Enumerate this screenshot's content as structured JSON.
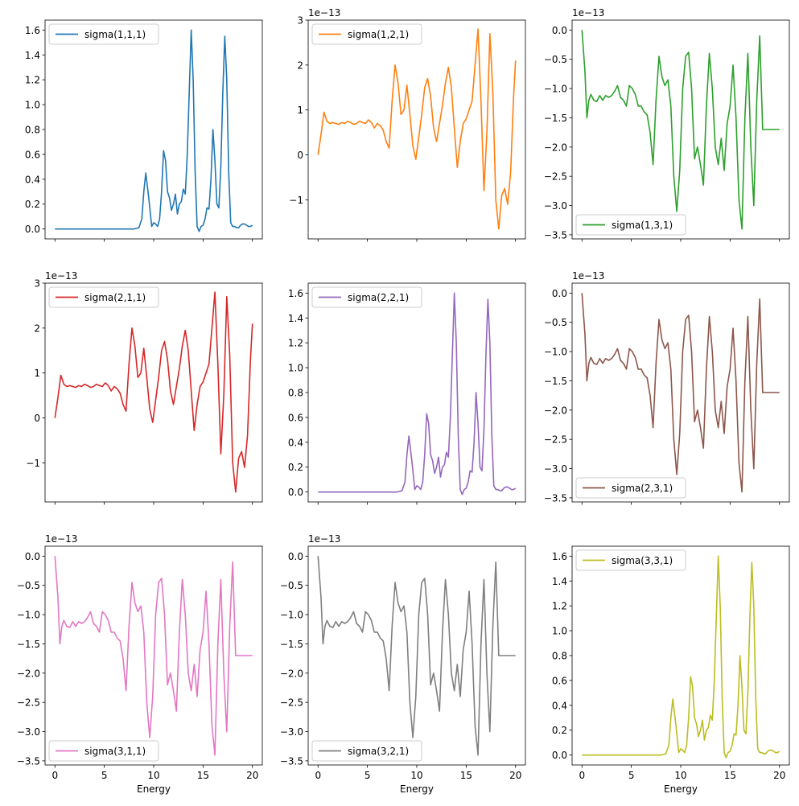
{
  "figure": {
    "xlabel": "Energy",
    "offset_text": "1e−13"
  },
  "colors": [
    "#1f77b4",
    "#ff7f0e",
    "#2ca02c",
    "#d62728",
    "#9467bd",
    "#8c564b",
    "#e377c2",
    "#7f7f7f",
    "#bcbd22"
  ],
  "chart_data": [
    {
      "type": "line",
      "name": "sigma(1,1,1)",
      "series": [
        {
          "name": "sigma(1,1,1)"
        }
      ],
      "scale": 1,
      "shape": "A",
      "sign": 1,
      "ylim": [
        -0.08,
        1.68
      ],
      "yticks": [
        0,
        0.2,
        0.4,
        0.6,
        0.8,
        1.0,
        1.2,
        1.4,
        1.6
      ],
      "ytick_labels": [
        "0.0",
        "0.2",
        "0.4",
        "0.6",
        "0.8",
        "1.0",
        "1.2",
        "1.4",
        "1.6"
      ],
      "xlim": [
        -1,
        21
      ],
      "xticks": [
        0,
        5,
        10,
        15,
        20
      ],
      "xtick_labels": [
        "0",
        "5",
        "10",
        "15",
        "20"
      ],
      "show_xticklabels": false,
      "xlabel": "",
      "offset": false,
      "legend": "upper left",
      "color": "#1f77b4"
    },
    {
      "type": "line",
      "name": "sigma(1,2,1)",
      "series": [
        {
          "name": "sigma(1,2,1)"
        }
      ],
      "scale": 1,
      "shape": "B",
      "sign": 1,
      "ylim": [
        -1.87,
        3.0
      ],
      "yticks": [
        -1,
        0,
        1,
        2,
        3
      ],
      "ytick_labels": [
        "−1",
        "0",
        "1",
        "2",
        "3"
      ],
      "xlim": [
        -1,
        21
      ],
      "xticks": [
        0,
        5,
        10,
        15,
        20
      ],
      "xtick_labels": [
        "0",
        "5",
        "10",
        "15",
        "20"
      ],
      "show_xticklabels": false,
      "xlabel": "",
      "offset": true,
      "legend": "upper left",
      "color": "#ff7f0e"
    },
    {
      "type": "line",
      "name": "sigma(1,3,1)",
      "series": [
        {
          "name": "sigma(1,3,1)"
        }
      ],
      "scale": 1,
      "shape": "C",
      "sign": 1,
      "ylim": [
        -3.57,
        0.17
      ],
      "yticks": [
        -3.5,
        -3.0,
        -2.5,
        -2.0,
        -1.5,
        -1.0,
        -0.5,
        0.0
      ],
      "ytick_labels": [
        "−3.5",
        "−3.0",
        "−2.5",
        "−2.0",
        "−1.5",
        "−1.0",
        "−0.5",
        "0.0"
      ],
      "xlim": [
        -1,
        21
      ],
      "xticks": [
        0,
        5,
        10,
        15,
        20
      ],
      "xtick_labels": [
        "0",
        "5",
        "10",
        "15",
        "20"
      ],
      "show_xticklabels": false,
      "xlabel": "",
      "offset": true,
      "legend": "lower left",
      "color": "#2ca02c"
    },
    {
      "type": "line",
      "name": "sigma(2,1,1)",
      "series": [
        {
          "name": "sigma(2,1,1)"
        }
      ],
      "scale": 1,
      "shape": "B",
      "sign": 1,
      "ylim": [
        -1.87,
        3.0
      ],
      "yticks": [
        -1,
        0,
        1,
        2,
        3
      ],
      "ytick_labels": [
        "−1",
        "0",
        "1",
        "2",
        "3"
      ],
      "xlim": [
        -1,
        21
      ],
      "xticks": [
        0,
        5,
        10,
        15,
        20
      ],
      "xtick_labels": [
        "0",
        "5",
        "10",
        "15",
        "20"
      ],
      "show_xticklabels": false,
      "xlabel": "",
      "offset": true,
      "legend": "upper left",
      "color": "#d62728"
    },
    {
      "type": "line",
      "name": "sigma(2,2,1)",
      "series": [
        {
          "name": "sigma(2,2,1)"
        }
      ],
      "scale": 1,
      "shape": "A",
      "sign": 1,
      "ylim": [
        -0.08,
        1.68
      ],
      "yticks": [
        0,
        0.2,
        0.4,
        0.6,
        0.8,
        1.0,
        1.2,
        1.4,
        1.6
      ],
      "ytick_labels": [
        "0.0",
        "0.2",
        "0.4",
        "0.6",
        "0.8",
        "1.0",
        "1.2",
        "1.4",
        "1.6"
      ],
      "xlim": [
        -1,
        21
      ],
      "xticks": [
        0,
        5,
        10,
        15,
        20
      ],
      "xtick_labels": [
        "0",
        "5",
        "10",
        "15",
        "20"
      ],
      "show_xticklabels": false,
      "xlabel": "",
      "offset": false,
      "legend": "upper left",
      "color": "#9467bd"
    },
    {
      "type": "line",
      "name": "sigma(2,3,1)",
      "series": [
        {
          "name": "sigma(2,3,1)"
        }
      ],
      "scale": 1,
      "shape": "C",
      "sign": 1,
      "ylim": [
        -3.57,
        0.17
      ],
      "yticks": [
        -3.5,
        -3.0,
        -2.5,
        -2.0,
        -1.5,
        -1.0,
        -0.5,
        0.0
      ],
      "ytick_labels": [
        "−3.5",
        "−3.0",
        "−2.5",
        "−2.0",
        "−1.5",
        "−1.0",
        "−0.5",
        "0.0"
      ],
      "xlim": [
        -1,
        21
      ],
      "xticks": [
        0,
        5,
        10,
        15,
        20
      ],
      "xtick_labels": [
        "0",
        "5",
        "10",
        "15",
        "20"
      ],
      "show_xticklabels": false,
      "xlabel": "",
      "offset": true,
      "legend": "lower left",
      "color": "#8c564b"
    },
    {
      "type": "line",
      "name": "sigma(3,1,1)",
      "series": [
        {
          "name": "sigma(3,1,1)"
        }
      ],
      "scale": 1,
      "shape": "C",
      "sign": 1,
      "ylim": [
        -3.57,
        0.17
      ],
      "yticks": [
        -3.5,
        -3.0,
        -2.5,
        -2.0,
        -1.5,
        -1.0,
        -0.5,
        0.0
      ],
      "ytick_labels": [
        "−3.5",
        "−3.0",
        "−2.5",
        "−2.0",
        "−1.5",
        "−1.0",
        "−0.5",
        "0.0"
      ],
      "xlim": [
        -1,
        21
      ],
      "xticks": [
        0,
        5,
        10,
        15,
        20
      ],
      "xtick_labels": [
        "0",
        "5",
        "10",
        "15",
        "20"
      ],
      "show_xticklabels": true,
      "xlabel": "Energy",
      "offset": true,
      "legend": "lower left",
      "color": "#e377c2"
    },
    {
      "type": "line",
      "name": "sigma(3,2,1)",
      "series": [
        {
          "name": "sigma(3,2,1)"
        }
      ],
      "scale": 1,
      "shape": "C",
      "sign": 1,
      "ylim": [
        -3.57,
        0.17
      ],
      "yticks": [
        -3.5,
        -3.0,
        -2.5,
        -2.0,
        -1.5,
        -1.0,
        -0.5,
        0.0
      ],
      "ytick_labels": [
        "−3.5",
        "−3.0",
        "−2.5",
        "−2.0",
        "−1.5",
        "−1.0",
        "−0.5",
        "0.0"
      ],
      "xlim": [
        -1,
        21
      ],
      "xticks": [
        0,
        5,
        10,
        15,
        20
      ],
      "xtick_labels": [
        "0",
        "5",
        "10",
        "15",
        "20"
      ],
      "show_xticklabels": true,
      "xlabel": "Energy",
      "offset": true,
      "legend": "lower left",
      "color": "#7f7f7f"
    },
    {
      "type": "line",
      "name": "sigma(3,3,1)",
      "series": [
        {
          "name": "sigma(3,3,1)"
        }
      ],
      "scale": 1,
      "shape": "A",
      "sign": 1,
      "ylim": [
        -0.08,
        1.68
      ],
      "yticks": [
        0,
        0.2,
        0.4,
        0.6,
        0.8,
        1.0,
        1.2,
        1.4,
        1.6
      ],
      "ytick_labels": [
        "0.0",
        "0.2",
        "0.4",
        "0.6",
        "0.8",
        "1.0",
        "1.2",
        "1.4",
        "1.6"
      ],
      "xlim": [
        -1,
        21
      ],
      "xticks": [
        0,
        5,
        10,
        15,
        20
      ],
      "xtick_labels": [
        "0",
        "5",
        "10",
        "15",
        "20"
      ],
      "show_xticklabels": true,
      "xlabel": "Energy",
      "offset": false,
      "legend": "upper left",
      "color": "#bcbd22"
    }
  ],
  "curves": {
    "A": {
      "x": [
        0,
        7,
        8,
        8.5,
        8.8,
        9.0,
        9.2,
        9.5,
        9.8,
        10.0,
        10.2,
        10.4,
        10.6,
        10.8,
        11.0,
        11.2,
        11.4,
        11.6,
        11.8,
        12.0,
        12.2,
        12.4,
        12.6,
        12.8,
        13.0,
        13.2,
        13.4,
        13.6,
        13.8,
        14.0,
        14.2,
        14.4,
        14.6,
        14.8,
        15.0,
        15.2,
        15.4,
        15.6,
        15.8,
        16.0,
        16.2,
        16.4,
        16.6,
        16.8,
        17.0,
        17.2,
        17.4,
        17.6,
        17.8,
        18.0,
        18.2,
        18.4,
        18.6,
        18.8,
        19.0,
        19.2,
        19.4,
        19.6,
        19.8,
        20.0
      ],
      "y": [
        0,
        0,
        0,
        0.01,
        0.08,
        0.3,
        0.45,
        0.25,
        0.02,
        0.05,
        0.04,
        0.02,
        0.08,
        0.3,
        0.63,
        0.55,
        0.3,
        0.25,
        0.15,
        0.2,
        0.28,
        0.12,
        0.2,
        0.22,
        0.32,
        0.28,
        0.6,
        1.1,
        1.6,
        1.2,
        0.45,
        0.02,
        -0.02,
        0.02,
        0.03,
        0.08,
        0.17,
        0.16,
        0.4,
        0.8,
        0.55,
        0.2,
        0.17,
        0.5,
        1.1,
        1.55,
        1.2,
        0.45,
        0.05,
        0.02,
        0.02,
        0.01,
        0.01,
        0.03,
        0.04,
        0.04,
        0.03,
        0.02,
        0.02,
        0.03
      ]
    },
    "B": {
      "x": [
        0,
        0.3,
        0.6,
        0.9,
        1.2,
        1.5,
        1.8,
        2.1,
        2.4,
        2.7,
        3.0,
        3.3,
        3.6,
        3.9,
        4.2,
        4.5,
        4.8,
        5.1,
        5.4,
        5.7,
        6.0,
        6.3,
        6.6,
        6.9,
        7.2,
        7.5,
        7.8,
        8.1,
        8.4,
        8.7,
        9.0,
        9.3,
        9.6,
        9.9,
        10.2,
        10.5,
        10.8,
        11.1,
        11.4,
        11.7,
        12.0,
        12.3,
        12.6,
        12.9,
        13.2,
        13.5,
        13.8,
        14.1,
        14.4,
        14.7,
        15.0,
        15.3,
        15.6,
        15.9,
        16.2,
        16.5,
        16.8,
        17.1,
        17.4,
        17.7,
        18.0,
        18.3,
        18.6,
        18.9,
        19.2,
        19.5,
        19.8,
        20.0
      ],
      "y": [
        0,
        0.45,
        0.95,
        0.75,
        0.7,
        0.72,
        0.7,
        0.68,
        0.72,
        0.7,
        0.75,
        0.72,
        0.68,
        0.7,
        0.75,
        0.72,
        0.7,
        0.78,
        0.72,
        0.6,
        0.7,
        0.65,
        0.55,
        0.3,
        0.15,
        1.2,
        2.0,
        1.6,
        0.9,
        1.0,
        1.55,
        0.9,
        0.2,
        -0.1,
        0.4,
        0.9,
        1.5,
        1.7,
        1.3,
        0.6,
        0.3,
        0.7,
        1.1,
        1.6,
        1.95,
        1.5,
        0.6,
        -0.28,
        0.3,
        0.7,
        0.8,
        1.0,
        1.2,
        2.0,
        2.8,
        1.2,
        -0.8,
        0.5,
        2.7,
        1.4,
        -1.0,
        -1.65,
        -0.9,
        -0.75,
        -1.1,
        -0.4,
        1.3,
        2.1
      ]
    },
    "C": {
      "x": [
        0,
        0.3,
        0.5,
        0.7,
        0.9,
        1.2,
        1.5,
        1.8,
        2.1,
        2.4,
        2.7,
        3.0,
        3.3,
        3.6,
        3.9,
        4.2,
        4.5,
        4.8,
        5.1,
        5.4,
        5.7,
        6.0,
        6.3,
        6.6,
        6.9,
        7.2,
        7.5,
        7.8,
        8.1,
        8.4,
        8.7,
        9.0,
        9.3,
        9.6,
        9.9,
        10.2,
        10.5,
        10.8,
        11.1,
        11.4,
        11.7,
        12.0,
        12.3,
        12.6,
        12.9,
        13.2,
        13.5,
        13.8,
        14.1,
        14.4,
        14.7,
        15.0,
        15.3,
        15.6,
        15.9,
        16.2,
        16.5,
        16.8,
        17.1,
        17.4,
        17.7,
        18.0,
        18.3,
        18.6,
        18.9,
        19.2,
        19.5,
        19.8,
        20.0
      ],
      "y": [
        0,
        -0.7,
        -1.5,
        -1.2,
        -1.1,
        -1.2,
        -1.22,
        -1.12,
        -1.2,
        -1.12,
        -1.15,
        -1.12,
        -1.05,
        -0.95,
        -1.15,
        -1.2,
        -1.3,
        -0.95,
        -1.0,
        -1.1,
        -1.3,
        -1.3,
        -1.4,
        -1.45,
        -1.75,
        -2.3,
        -1.2,
        -0.45,
        -0.8,
        -0.95,
        -0.85,
        -1.3,
        -2.5,
        -3.1,
        -2.4,
        -1.0,
        -0.45,
        -0.38,
        -1.0,
        -2.2,
        -2.0,
        -2.3,
        -2.65,
        -1.3,
        -0.4,
        -1.0,
        -2.0,
        -2.3,
        -1.85,
        -2.4,
        -1.6,
        -1.3,
        -0.6,
        -1.5,
        -2.9,
        -3.4,
        -1.5,
        -0.4,
        -2.0,
        -3.0,
        -1.2,
        -0.1,
        -1.7,
        -1.7,
        -1.7,
        -1.7,
        -1.7,
        -1.7,
        -1.7
      ]
    }
  }
}
